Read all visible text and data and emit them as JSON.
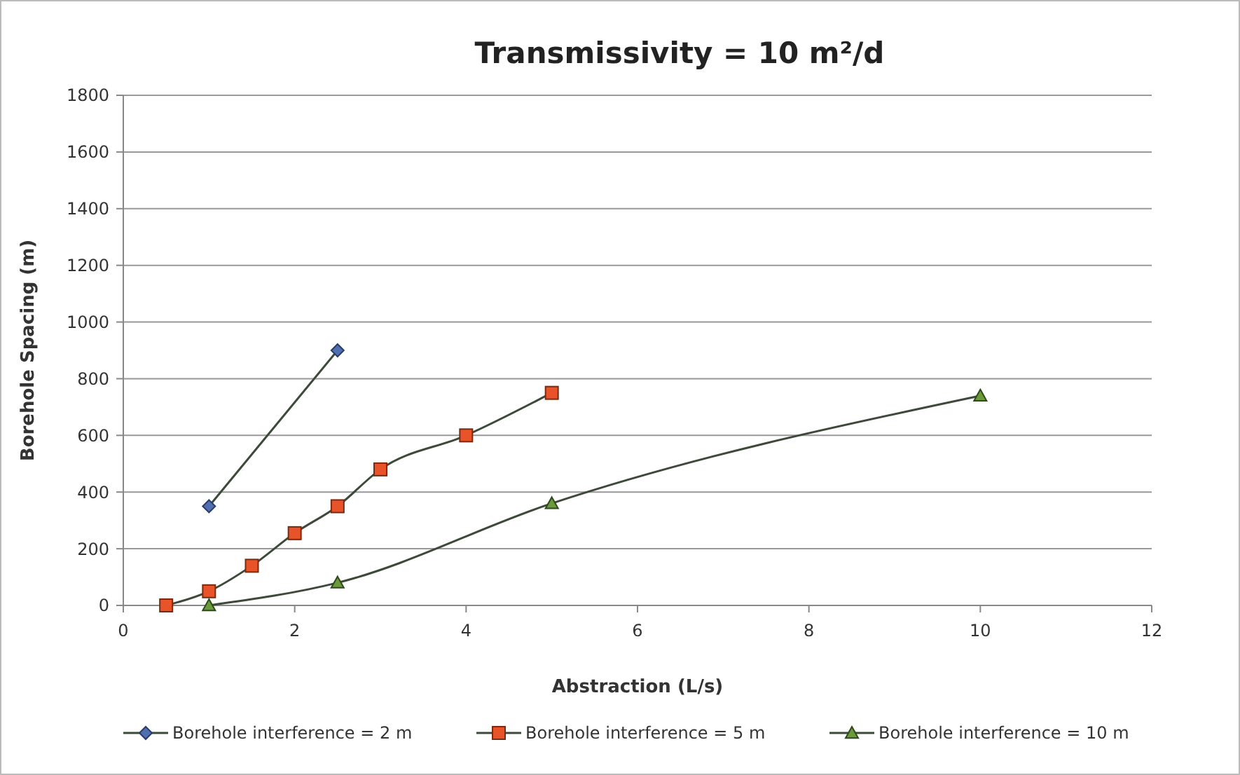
{
  "chart_data": {
    "type": "line",
    "title": "Transmissivity = 10 m²/d",
    "xlabel": "Abstraction (L/s)",
    "ylabel": "Borehole Spacing (m)",
    "xlim": [
      0,
      12
    ],
    "xticks": [
      0,
      2,
      4,
      6,
      8,
      10,
      12
    ],
    "ylim": [
      0,
      1800
    ],
    "yticks": [
      0,
      200,
      400,
      600,
      800,
      1000,
      1200,
      1400,
      1600,
      1800
    ],
    "grid": "y",
    "legend": "bottom",
    "line_style": "solid",
    "series": [
      {
        "name": "Borehole interference = 2 m",
        "color": "#4f6fb0",
        "marker": "diamond",
        "x": [
          1,
          2.5
        ],
        "values": [
          350,
          900
        ]
      },
      {
        "name": "Borehole interference = 5 m",
        "color": "#e8532a",
        "marker": "square",
        "x": [
          0.5,
          1,
          1.5,
          2,
          2.5,
          3,
          4,
          5
        ],
        "values": [
          0,
          50,
          140,
          255,
          350,
          480,
          600,
          750
        ]
      },
      {
        "name": "Borehole interference = 10 m",
        "color": "#6a9a3a",
        "marker": "triangle",
        "x": [
          1,
          2.5,
          5,
          10
        ],
        "values": [
          0,
          80,
          360,
          740
        ]
      }
    ]
  }
}
